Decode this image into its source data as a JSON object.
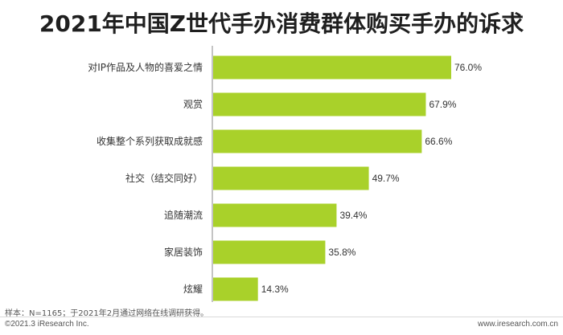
{
  "title": "2021年中国Z世代手办消费群体购买手办的诉求",
  "chart_data": {
    "type": "bar",
    "orientation": "horizontal",
    "categories": [
      "对IP作品及人物的喜爱之情",
      "观赏",
      "收集整个系列获取成就感",
      "社交（结交同好）",
      "追随潮流",
      "家居装饰",
      "炫耀"
    ],
    "values": [
      76.0,
      67.9,
      66.6,
      49.7,
      39.4,
      35.8,
      14.3
    ],
    "value_labels": [
      "76.0%",
      "67.9%",
      "66.6%",
      "49.7%",
      "39.4%",
      "35.8%",
      "14.3%"
    ],
    "unit": "%",
    "xlim": [
      0,
      76.0
    ],
    "bar_color": "#a9d12a",
    "grid": false,
    "legend": "none"
  },
  "footer": {
    "note": "样本：N=1165；于2021年2月通过网络在线调研获得。",
    "copyright": "©2021.3 iResearch Inc.",
    "website": "www.iresearch.com.cn"
  },
  "colors": {
    "bar": "#a9d12a",
    "axis": "#888888",
    "text": "#333333"
  }
}
